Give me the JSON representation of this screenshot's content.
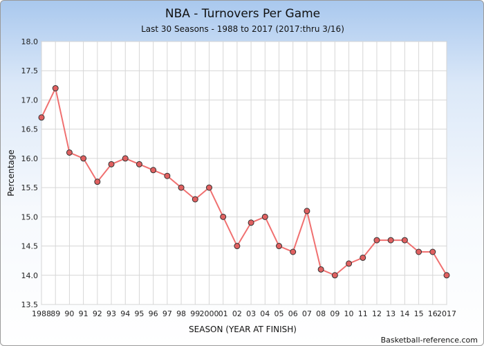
{
  "chart_data": {
    "type": "line",
    "title": "NBA - Turnovers Per Game",
    "subtitle": "Last 30 Seasons - 1988 to 2017 (2017:thru 3/16)",
    "xlabel": "SEASON (YEAR AT FINISH)",
    "ylabel": "Percentage",
    "credit": "Basketball-reference.com",
    "ylim": [
      13.5,
      18.0
    ],
    "yticks": [
      "13.5",
      "14.0",
      "14.5",
      "15.0",
      "15.5",
      "16.0",
      "16.5",
      "17.0",
      "17.5",
      "18.0"
    ],
    "grid": true,
    "line_color": "#f07070",
    "marker_color": "#e06060",
    "categories": [
      "1988",
      "89",
      "90",
      "91",
      "92",
      "93",
      "94",
      "95",
      "96",
      "97",
      "98",
      "99",
      "2000",
      "01",
      "02",
      "03",
      "04",
      "05",
      "06",
      "07",
      "08",
      "09",
      "10",
      "11",
      "12",
      "13",
      "14",
      "15",
      "16",
      "2017"
    ],
    "values": [
      16.7,
      17.2,
      16.1,
      16.0,
      15.6,
      15.9,
      16.0,
      15.9,
      15.8,
      15.7,
      15.5,
      15.3,
      15.5,
      15.0,
      14.5,
      14.9,
      15.0,
      14.5,
      14.4,
      15.1,
      14.1,
      14.0,
      14.2,
      14.3,
      14.6,
      14.6,
      14.6,
      14.4,
      14.4,
      14.0
    ]
  }
}
